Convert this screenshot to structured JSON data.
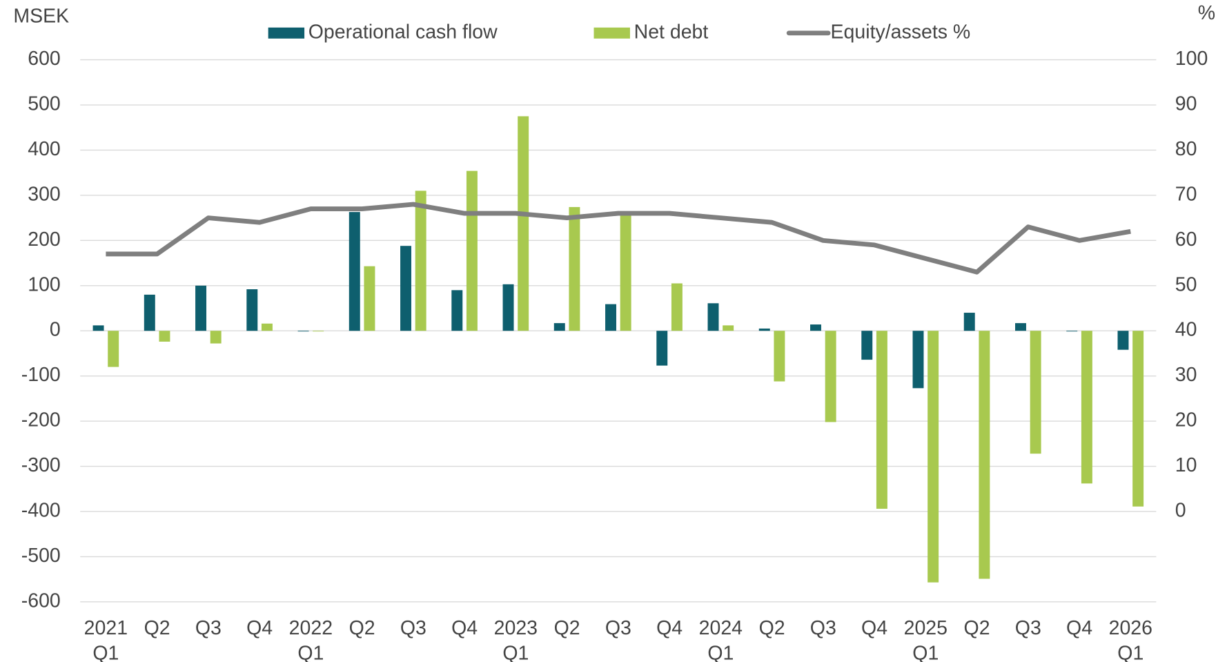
{
  "chart_data": {
    "type": "bar_line",
    "y_label": "MSEK",
    "y2_label": "%",
    "categories": [
      [
        "2021",
        "Q1"
      ],
      [
        "Q2"
      ],
      [
        "Q3"
      ],
      [
        "Q4"
      ],
      [
        "2022",
        "Q1"
      ],
      [
        "Q2"
      ],
      [
        "Q3"
      ],
      [
        "Q4"
      ],
      [
        "2023",
        "Q1"
      ],
      [
        "Q2"
      ],
      [
        "Q3"
      ],
      [
        "Q4"
      ],
      [
        "2024",
        "Q1"
      ],
      [
        "Q2"
      ],
      [
        "Q3"
      ],
      [
        "Q4"
      ],
      [
        "2025",
        "Q1"
      ],
      [
        "Q2"
      ],
      [
        "Q3"
      ],
      [
        "Q4"
      ],
      [
        "2026",
        "Q1"
      ]
    ],
    "series": [
      {
        "name": "Operational cash flow",
        "type": "bar",
        "color": "#0e5f6e",
        "values": [
          12,
          80,
          100,
          92,
          0,
          263,
          188,
          90,
          103,
          17,
          59,
          -77,
          61,
          5,
          14,
          -64,
          -127,
          40,
          17,
          0,
          -42
        ]
      },
      {
        "name": "Net debt",
        "type": "bar",
        "color": "#a8c94f",
        "values": [
          -80,
          -24,
          -28,
          16,
          0,
          143,
          310,
          354,
          475,
          274,
          263,
          105,
          12,
          -112,
          -202,
          -394,
          -557,
          -549,
          -272,
          -338,
          -389
        ]
      },
      {
        "name": "Equity/assets %",
        "type": "line",
        "axis": "y2",
        "color": "#7f7f7f",
        "values": [
          57,
          57,
          65,
          64,
          67,
          67,
          68,
          66,
          66,
          65,
          66,
          66,
          65,
          64,
          60,
          59,
          56,
          53,
          63,
          60,
          62
        ]
      }
    ],
    "ylim": [
      -600,
      600
    ],
    "yticks": [
      -600,
      -500,
      -400,
      -300,
      -200,
      -100,
      0,
      100,
      200,
      300,
      400,
      500,
      600
    ],
    "y2lim": [
      -20,
      100
    ],
    "y2ticks": [
      0,
      10,
      20,
      30,
      40,
      50,
      60,
      70,
      80,
      90,
      100
    ],
    "grid": true,
    "legend": "top"
  }
}
